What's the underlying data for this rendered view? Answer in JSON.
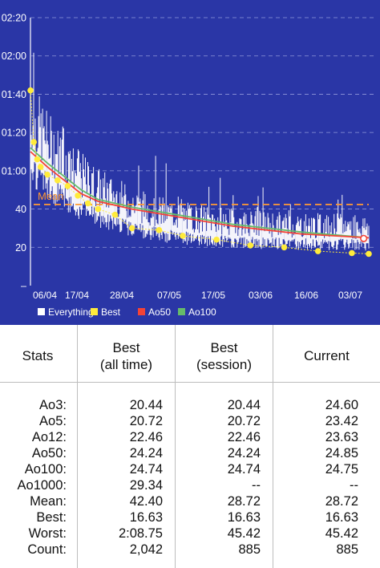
{
  "chart": {
    "y_ticks": [
      "02:20",
      "02:00",
      "01:40",
      "01:20",
      "01:00",
      "40",
      "20",
      "–"
    ],
    "x_ticks": [
      "06/04",
      "17/04",
      "28/04",
      "07/05",
      "17/05",
      "03/06",
      "16/06",
      "03/07"
    ],
    "mean_label": "Mean",
    "legend": [
      {
        "label": "Everything",
        "color": "#ffffff"
      },
      {
        "label": "Best",
        "color": "#ffeb3b"
      },
      {
        "label": "Ao50",
        "color": "#f44336"
      },
      {
        "label": "Ao100",
        "color": "#66bb6a"
      }
    ],
    "colors": {
      "background": "#2a36a6",
      "everything": "#ffffff",
      "best": "#ffeb3b",
      "ao50": "#f44336",
      "ao100": "#66bb6a",
      "mean": "#ff9a33"
    }
  },
  "chart_data": {
    "type": "line",
    "y_axis_unit": "seconds",
    "ylim": [
      0,
      140
    ],
    "mean_seconds": 42.4,
    "series": [
      {
        "name": "Ao50",
        "points": [
          [
            0,
            70
          ],
          [
            0.05,
            62
          ],
          [
            0.1,
            55
          ],
          [
            0.15,
            48
          ],
          [
            0.2,
            44
          ],
          [
            0.3,
            40
          ],
          [
            0.4,
            37
          ],
          [
            0.5,
            34
          ],
          [
            0.6,
            31
          ],
          [
            0.7,
            29
          ],
          [
            0.8,
            27
          ],
          [
            0.9,
            26
          ],
          [
            1,
            25
          ]
        ]
      },
      {
        "name": "Ao100",
        "points": [
          [
            0,
            72
          ],
          [
            0.05,
            64
          ],
          [
            0.1,
            57
          ],
          [
            0.15,
            50
          ],
          [
            0.2,
            45
          ],
          [
            0.3,
            41
          ],
          [
            0.4,
            38
          ],
          [
            0.5,
            35
          ],
          [
            0.6,
            32
          ],
          [
            0.7,
            30
          ],
          [
            0.8,
            28
          ],
          [
            0.9,
            26.5
          ],
          [
            1,
            25
          ]
        ]
      },
      {
        "name": "Best",
        "points": [
          [
            0,
            102
          ],
          [
            0.01,
            75
          ],
          [
            0.02,
            66
          ],
          [
            0.03,
            62
          ],
          [
            0.05,
            58
          ],
          [
            0.08,
            55
          ],
          [
            0.11,
            52
          ],
          [
            0.14,
            47
          ],
          [
            0.17,
            43
          ],
          [
            0.2,
            40
          ],
          [
            0.25,
            37
          ],
          [
            0.3,
            30
          ],
          [
            0.38,
            29
          ],
          [
            0.45,
            26
          ],
          [
            0.55,
            24
          ],
          [
            0.65,
            21
          ],
          [
            0.75,
            20
          ],
          [
            0.85,
            18
          ],
          [
            0.95,
            17
          ],
          [
            1,
            16.6
          ]
        ]
      }
    ]
  },
  "stats": {
    "headers": [
      "Stats",
      "Best\n(all time)",
      "Best\n(session)",
      "Current"
    ],
    "rows": [
      [
        "Ao3:",
        "20.44",
        "20.44",
        "24.60"
      ],
      [
        "Ao5:",
        "20.72",
        "20.72",
        "23.42"
      ],
      [
        "Ao12:",
        "22.46",
        "22.46",
        "23.63"
      ],
      [
        "Ao50:",
        "24.24",
        "24.24",
        "24.85"
      ],
      [
        "Ao100:",
        "24.74",
        "24.74",
        "24.75"
      ],
      [
        "Ao1000:",
        "29.34",
        "--",
        "--"
      ],
      [
        "Mean:",
        "42.40",
        "28.72",
        "28.72"
      ],
      [
        "Best:",
        "16.63",
        "16.63",
        "16.63"
      ],
      [
        "Worst:",
        "2:08.75",
        "45.42",
        "45.42"
      ],
      [
        "Count:",
        "2,042",
        "885",
        "885"
      ]
    ]
  }
}
